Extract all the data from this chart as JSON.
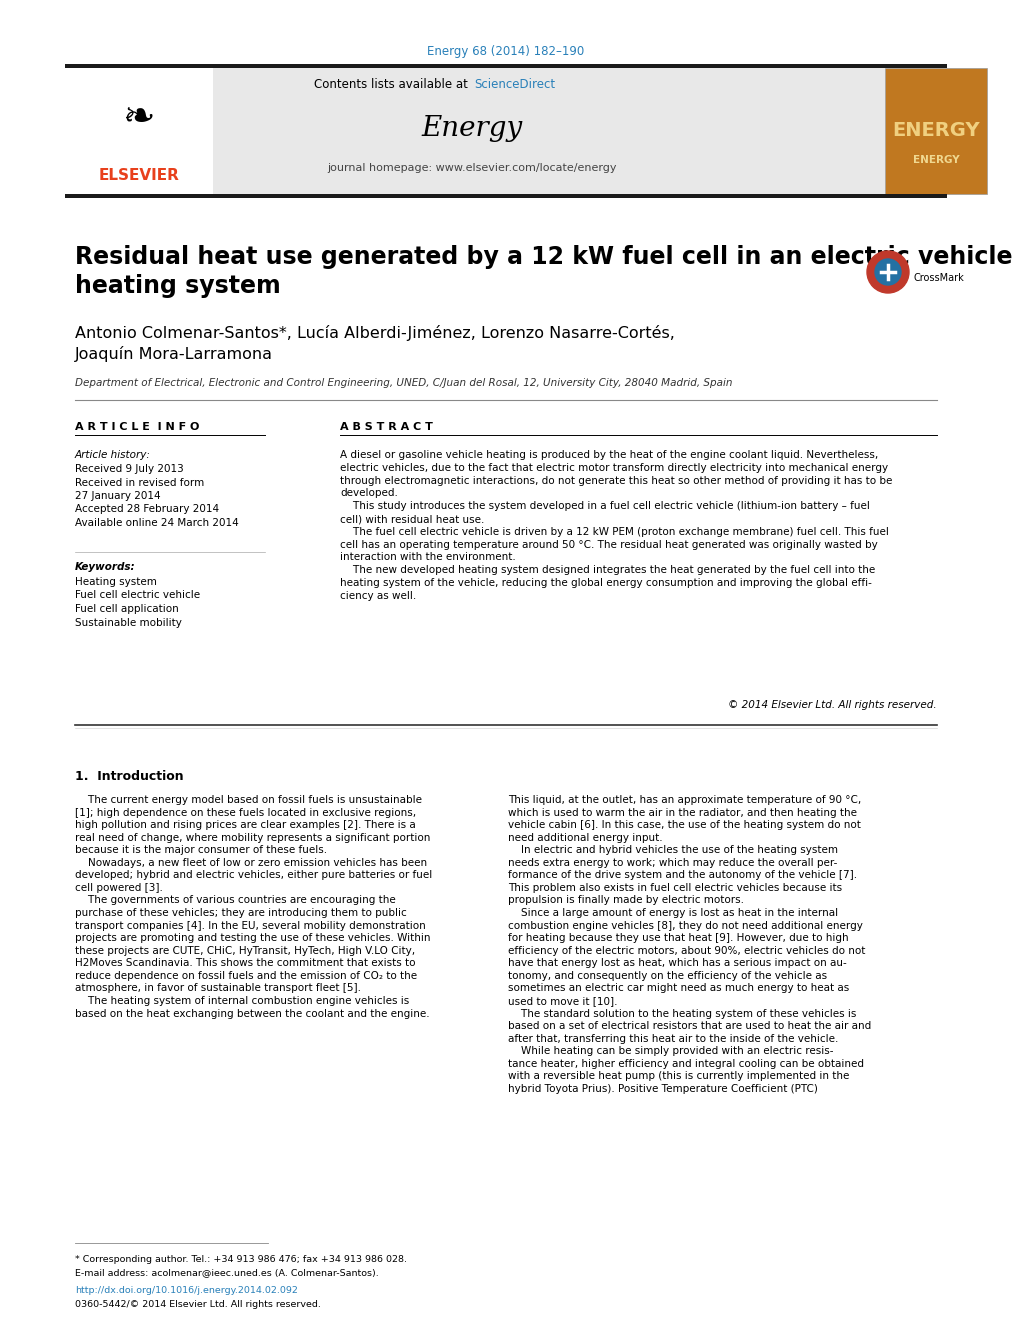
{
  "page_bg": "#ffffff",
  "top_journal_ref": "Energy 68 (2014) 182–190",
  "top_journal_ref_color": "#2980b9",
  "header_bg": "#e8e8e8",
  "header_sciencedirect_color": "#2980b9",
  "journal_name": "Energy",
  "journal_homepage": "journal homepage: www.elsevier.com/locate/energy",
  "elsevier_color": "#e8401c",
  "dark_bar_color": "#1a1a1a",
  "article_title": "Residual heat use generated by a 12 kW fuel cell in an electric vehicle\nheating system",
  "authors": "Antonio Colmenar-Santos*, Lucía Alberdi-Jiménez, Lorenzo Nasarre-Cortés,\nJoaquín Mora-Larramona",
  "affiliation": "Department of Electrical, Electronic and Control Engineering, UNED, C/Juan del Rosal, 12, University City, 28040 Madrid, Spain",
  "article_info_title": "A R T I C L E  I N F O",
  "abstract_title": "A B S T R A C T",
  "article_history_label": "Article history:",
  "received": "Received 9 July 2013",
  "received_revised": "Received in revised form",
  "revised_date": "27 January 2014",
  "accepted": "Accepted 28 February 2014",
  "available": "Available online 24 March 2014",
  "keywords_label": "Keywords:",
  "keywords": [
    "Heating system",
    "Fuel cell electric vehicle",
    "Fuel cell application",
    "Sustainable mobility"
  ],
  "abstract_text": "A diesel or gasoline vehicle heating is produced by the heat of the engine coolant liquid. Nevertheless,\nelectric vehicles, due to the fact that electric motor transform directly electricity into mechanical energy\nthrough electromagnetic interactions, do not generate this heat so other method of providing it has to be\ndeveloped.\n    This study introduces the system developed in a fuel cell electric vehicle (lithium-ion battery – fuel\ncell) with residual heat use.\n    The fuel cell electric vehicle is driven by a 12 kW PEM (proton exchange membrane) fuel cell. This fuel\ncell has an operating temperature around 50 °C. The residual heat generated was originally wasted by\ninteraction with the environment.\n    The new developed heating system designed integrates the heat generated by the fuel cell into the\nheating system of the vehicle, reducing the global energy consumption and improving the global effi-\nciency as well.",
  "copyright": "© 2014 Elsevier Ltd. All rights reserved.",
  "section1_title": "1.  Introduction",
  "intro_col1": "    The current energy model based on fossil fuels is unsustainable\n[1]; high dependence on these fuels located in exclusive regions,\nhigh pollution and rising prices are clear examples [2]. There is a\nreal need of change, where mobility represents a significant portion\nbecause it is the major consumer of these fuels.\n    Nowadays, a new fleet of low or zero emission vehicles has been\ndeveloped; hybrid and electric vehicles, either pure batteries or fuel\ncell powered [3].\n    The governments of various countries are encouraging the\npurchase of these vehicles; they are introducing them to public\ntransport companies [4]. In the EU, several mobility demonstration\nprojects are promoting and testing the use of these vehicles. Within\nthese projects are CUTE, CHiC, HyTransit, HyTech, High V.LO City,\nH2Moves Scandinavia. This shows the commitment that exists to\nreduce dependence on fossil fuels and the emission of CO₂ to the\natmosphere, in favor of sustainable transport fleet [5].\n    The heating system of internal combustion engine vehicles is\nbased on the heat exchanging between the coolant and the engine.",
  "intro_col2": "This liquid, at the outlet, has an approximate temperature of 90 °C,\nwhich is used to warm the air in the radiator, and then heating the\nvehicle cabin [6]. In this case, the use of the heating system do not\nneed additional energy input.\n    In electric and hybrid vehicles the use of the heating system\nneeds extra energy to work; which may reduce the overall per-\nformance of the drive system and the autonomy of the vehicle [7].\nThis problem also exists in fuel cell electric vehicles because its\npropulsion is finally made by electric motors.\n    Since a large amount of energy is lost as heat in the internal\ncombustion engine vehicles [8], they do not need additional energy\nfor heating because they use that heat [9]. However, due to high\nefficiency of the electric motors, about 90%, electric vehicles do not\nhave that energy lost as heat, which has a serious impact on au-\ntonomy, and consequently on the efficiency of the vehicle as\nsometimes an electric car might need as much energy to heat as\nused to move it [10].\n    The standard solution to the heating system of these vehicles is\nbased on a set of electrical resistors that are used to heat the air and\nafter that, transferring this heat air to the inside of the vehicle.\n    While heating can be simply provided with an electric resis-\ntance heater, higher efficiency and integral cooling can be obtained\nwith a reversible heat pump (this is currently implemented in the\nhybrid Toyota Prius). Positive Temperature Coefficient (PTC)",
  "footnote_corresponding": "* Corresponding author. Tel.: +34 913 986 476; fax +34 913 986 028.",
  "footnote_email": "E-mail address: acolmenar@ieec.uned.es (A. Colmenar-Santos).",
  "footer_doi": "http://dx.doi.org/10.1016/j.energy.2014.02.092",
  "footer_issn": "0360-5442/© 2014 Elsevier Ltd. All rights reserved.",
  "link_color": "#2980b9"
}
